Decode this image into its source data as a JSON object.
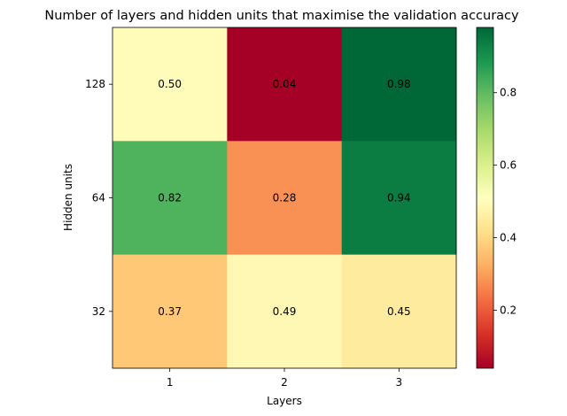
{
  "chart_data": {
    "type": "heatmap",
    "title": "Number of layers and hidden units that maximise the validation accuracy",
    "xlabel": "Layers",
    "ylabel": "Hidden units",
    "x_categories": [
      "1",
      "2",
      "3"
    ],
    "y_categories": [
      "128",
      "64",
      "32"
    ],
    "values": [
      [
        0.5,
        0.04,
        0.98
      ],
      [
        0.82,
        0.28,
        0.94
      ],
      [
        0.37,
        0.49,
        0.45
      ]
    ],
    "cell_labels": [
      [
        "0.50",
        "0.04",
        "0.98"
      ],
      [
        "0.82",
        "0.28",
        "0.94"
      ],
      [
        "0.37",
        "0.49",
        "0.45"
      ]
    ],
    "colormap": "RdYlGn",
    "color_range": [
      0.04,
      0.98
    ],
    "colorbar_ticks": [
      {
        "value": 0.2,
        "label": "0.2"
      },
      {
        "value": 0.4,
        "label": "0.4"
      },
      {
        "value": 0.6,
        "label": "0.6"
      },
      {
        "value": 0.8,
        "label": "0.8"
      }
    ],
    "grid": false,
    "legend": "colorbar-right"
  }
}
